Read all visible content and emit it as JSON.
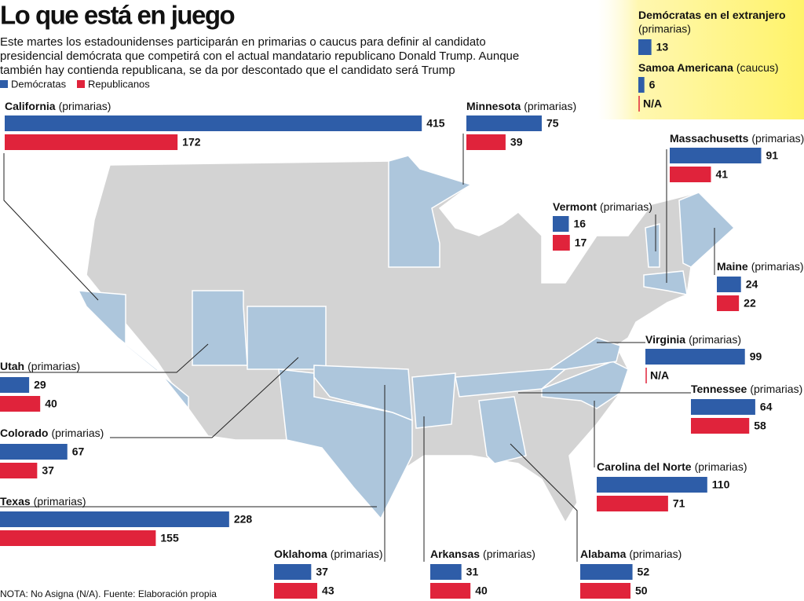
{
  "chart_data": {
    "type": "bar",
    "title": "Lo que está en juego",
    "subtitle": "Este martes los estadounidenses participarán en primarias o caucus para definir al candidato presidencial demócrata que competirá con el actual mandatario republicano Donald Trump. Aunque también hay contienda republicana, se da por descontado que el candidato será Trump",
    "series": [
      {
        "name": "Demócratas",
        "color": "#2e5da8"
      },
      {
        "name": "Republicanos",
        "color": "#e0233b"
      }
    ],
    "groups": [
      {
        "name": "California",
        "qualifier": "(primarias)",
        "values": [
          415,
          172
        ]
      },
      {
        "name": "Minnesota",
        "qualifier": "(primarias)",
        "values": [
          75,
          39
        ]
      },
      {
        "name": "Massachusetts",
        "qualifier": "(primarias)",
        "values": [
          91,
          41
        ]
      },
      {
        "name": "Vermont",
        "qualifier": "(primarias)",
        "values": [
          16,
          17
        ]
      },
      {
        "name": "Maine",
        "qualifier": "(primarias)",
        "values": [
          24,
          22
        ]
      },
      {
        "name": "Utah",
        "qualifier": "(primarias)",
        "values": [
          29,
          40
        ]
      },
      {
        "name": "Colorado",
        "qualifier": "(primarias)",
        "values": [
          67,
          37
        ]
      },
      {
        "name": "Texas",
        "qualifier": "(primarias)",
        "values": [
          228,
          155
        ]
      },
      {
        "name": "Virginia",
        "qualifier": "(primarias)",
        "values": [
          99,
          null
        ],
        "value_labels": [
          null,
          "N/A"
        ]
      },
      {
        "name": "Tennessee",
        "qualifier": "(primarias)",
        "values": [
          64,
          58
        ]
      },
      {
        "name": "Carolina del Norte",
        "qualifier": "(primarias)",
        "values": [
          110,
          71
        ]
      },
      {
        "name": "Oklahoma",
        "qualifier": "(primarias)",
        "values": [
          37,
          43
        ]
      },
      {
        "name": "Arkansas",
        "qualifier": "(primarias)",
        "values": [
          31,
          40
        ]
      },
      {
        "name": "Alabama",
        "qualifier": "(primarias)",
        "values": [
          52,
          50
        ]
      },
      {
        "name": "Demócratas en el extranjero",
        "qualifier": "(primarias)",
        "values": [
          13
        ]
      },
      {
        "name": "Samoa Americana",
        "qualifier": "(caucus)",
        "values": [
          6,
          null
        ],
        "value_labels": [
          null,
          "N/A"
        ]
      }
    ],
    "note": "NOTA: No Asigna (N/A). Fuente: Elaboración propia"
  }
}
